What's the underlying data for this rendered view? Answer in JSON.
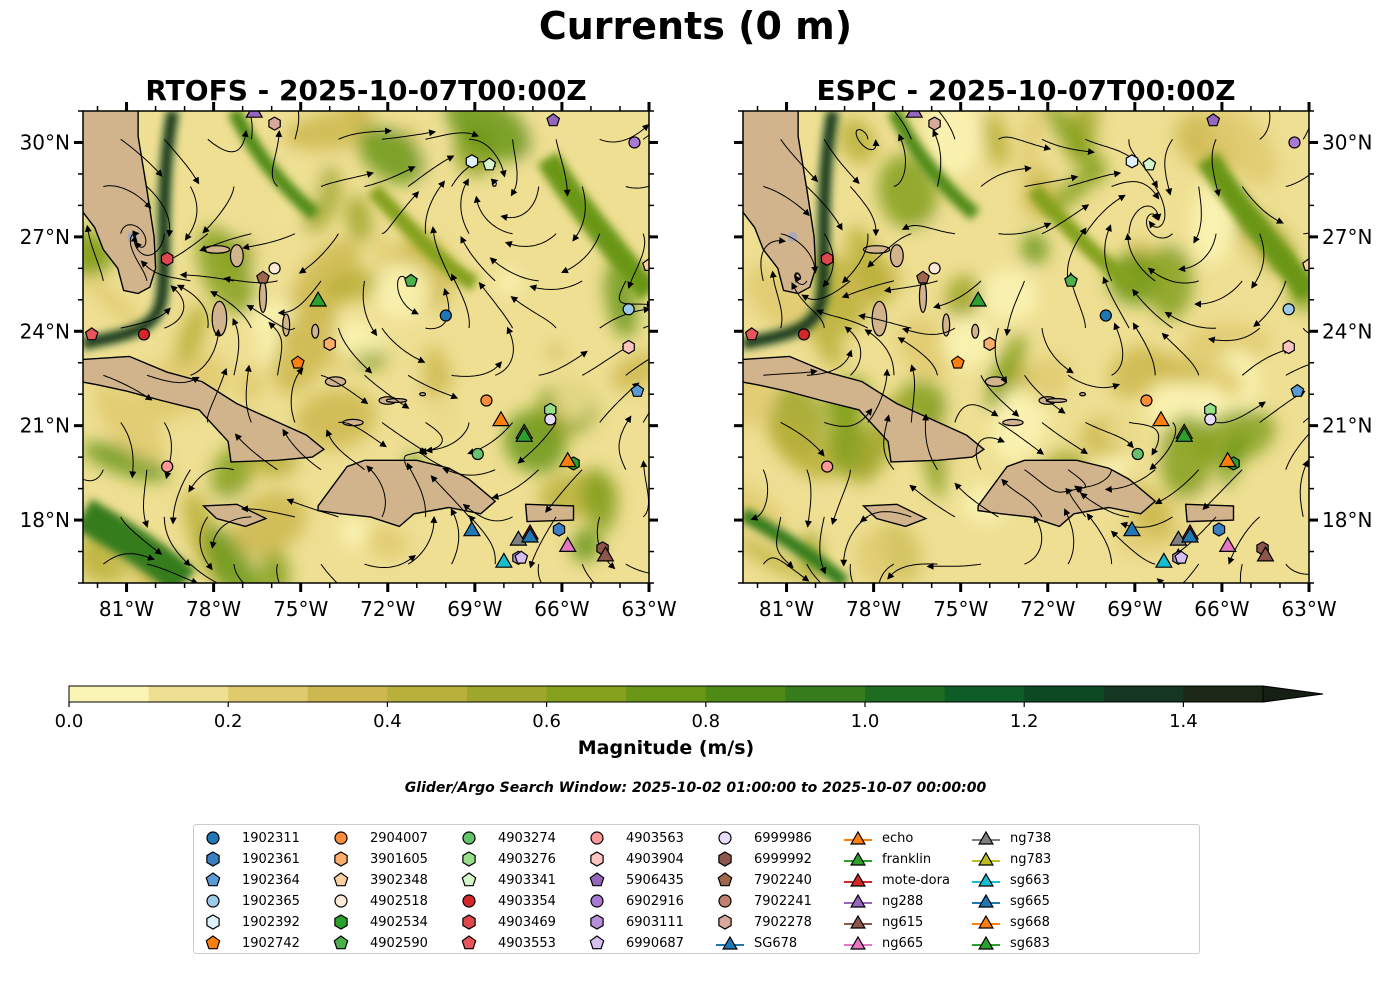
{
  "figure": {
    "title": "Currents (0 m)",
    "search_window": "Glider/Argo Search Window: 2025-10-02 01:00:00 to 2025-10-07 00:00:00"
  },
  "panels": [
    {
      "title": "RTOFS - 2025-10-07T00:00Z"
    },
    {
      "title": "ESPC - 2025-10-07T00:00Z"
    }
  ],
  "map_extent": {
    "lon": [
      -82.5,
      -63.0
    ],
    "lat": [
      16.0,
      31.0
    ]
  },
  "lon_ticks": [
    {
      "value": -81,
      "label": "81°W"
    },
    {
      "value": -78,
      "label": "78°W"
    },
    {
      "value": -75,
      "label": "75°W"
    },
    {
      "value": -72,
      "label": "72°W"
    },
    {
      "value": -69,
      "label": "69°W"
    },
    {
      "value": -66,
      "label": "66°W"
    },
    {
      "value": -63,
      "label": "63°W"
    }
  ],
  "lat_ticks": [
    {
      "value": 18,
      "label": "18°N"
    },
    {
      "value": 21,
      "label": "21°N"
    },
    {
      "value": 24,
      "label": "24°N"
    },
    {
      "value": 27,
      "label": "27°N"
    },
    {
      "value": 30,
      "label": "30°N"
    }
  ],
  "colorbar": {
    "label": "Magnitude (m/s)",
    "range": [
      0,
      1.5
    ],
    "extend": "max",
    "ticks": [
      {
        "value": 0.0,
        "label": "0.0"
      },
      {
        "value": 0.2,
        "label": "0.2"
      },
      {
        "value": 0.4,
        "label": "0.4"
      },
      {
        "value": 0.6,
        "label": "0.6"
      },
      {
        "value": 0.8,
        "label": "0.8"
      },
      {
        "value": 1.0,
        "label": "1.0"
      },
      {
        "value": 1.2,
        "label": "1.2"
      },
      {
        "value": 1.4,
        "label": "1.4"
      }
    ],
    "colors": [
      "#fbf5b5",
      "#eedf93",
      "#dfca6e",
      "#cdb84f",
      "#b8b03a",
      "#9fa62c",
      "#84a01c",
      "#6a9615",
      "#4f8a17",
      "#367c1c",
      "#1e6c21",
      "#0f5c26",
      "#0d4a24",
      "#153721",
      "#1b2817"
    ],
    "extend_color": "#151f14"
  },
  "land_color": "#d2b48c",
  "legend": [
    {
      "label": "1902311",
      "marker": "circle",
      "color": "#1f77b4"
    },
    {
      "label": "1902361",
      "marker": "hexagon",
      "color": "#3a7fc1"
    },
    {
      "label": "1902364",
      "marker": "pentagon",
      "color": "#5b9bd5"
    },
    {
      "label": "1902365",
      "marker": "circle",
      "color": "#9ecae9"
    },
    {
      "label": "1902392",
      "marker": "hexagon",
      "color": "#dff1fb"
    },
    {
      "label": "1902742",
      "marker": "pentagon",
      "color": "#ff7f0e"
    },
    {
      "label": "2904007",
      "marker": "circle",
      "color": "#fd8d3c"
    },
    {
      "label": "3901605",
      "marker": "hexagon",
      "color": "#fdae6b"
    },
    {
      "label": "3902348",
      "marker": "pentagon",
      "color": "#fdd0a2"
    },
    {
      "label": "4902518",
      "marker": "circle",
      "color": "#feebd7"
    },
    {
      "label": "4902534",
      "marker": "hexagon",
      "color": "#2ca02c"
    },
    {
      "label": "4902590",
      "marker": "pentagon",
      "color": "#4daf4a"
    },
    {
      "label": "4903274",
      "marker": "circle",
      "color": "#66c26b"
    },
    {
      "label": "4903276",
      "marker": "hexagon",
      "color": "#98df8a"
    },
    {
      "label": "4903341",
      "marker": "pentagon",
      "color": "#d4f5c9"
    },
    {
      "label": "4903354",
      "marker": "circle",
      "color": "#d62728"
    },
    {
      "label": "4903469",
      "marker": "hexagon",
      "color": "#e0474c"
    },
    {
      "label": "4903553",
      "marker": "pentagon",
      "color": "#e7555a"
    },
    {
      "label": "4903563",
      "marker": "circle",
      "color": "#ff9896"
    },
    {
      "label": "4903904",
      "marker": "hexagon",
      "color": "#fcc5c0"
    },
    {
      "label": "5906435",
      "marker": "pentagon",
      "color": "#9467bd"
    },
    {
      "label": "6902916",
      "marker": "circle",
      "color": "#a779d0"
    },
    {
      "label": "6903111",
      "marker": "hexagon",
      "color": "#b590d8"
    },
    {
      "label": "6990687",
      "marker": "pentagon",
      "color": "#d5bff0"
    },
    {
      "label": "6999986",
      "marker": "circle",
      "color": "#e9dcfb"
    },
    {
      "label": "6999992",
      "marker": "hexagon",
      "color": "#8c564b"
    },
    {
      "label": "7902240",
      "marker": "pentagon",
      "color": "#a0664d"
    },
    {
      "label": "7902241",
      "marker": "circle",
      "color": "#c08070"
    },
    {
      "label": "7902278",
      "marker": "hexagon",
      "color": "#d8a89a"
    },
    {
      "label": "SG678",
      "marker": "triangle",
      "color": "#1f77b4"
    },
    {
      "label": "echo",
      "marker": "triangle",
      "color": "#ff7f0e"
    },
    {
      "label": "franklin",
      "marker": "triangle",
      "color": "#2ca02c"
    },
    {
      "label": "mote-dora",
      "marker": "triangle",
      "color": "#d62728"
    },
    {
      "label": "ng288",
      "marker": "triangle",
      "color": "#9467bd"
    },
    {
      "label": "ng615",
      "marker": "triangle",
      "color": "#8c564b"
    },
    {
      "label": "ng665",
      "marker": "triangle",
      "color": "#e377c2"
    },
    {
      "label": "ng738",
      "marker": "triangle",
      "color": "#7f7f7f"
    },
    {
      "label": "ng783",
      "marker": "triangle",
      "color": "#bcbd22"
    },
    {
      "label": "sg663",
      "marker": "triangle",
      "color": "#17becf"
    },
    {
      "label": "sg665",
      "marker": "triangle",
      "color": "#1f77b4"
    },
    {
      "label": "sg668",
      "marker": "triangle",
      "color": "#ff7f0e"
    },
    {
      "label": "sg683",
      "marker": "triangle",
      "color": "#2ca02c"
    }
  ],
  "platforms": [
    {
      "label": "1902311",
      "lon": -70.0,
      "lat": 24.5
    },
    {
      "label": "1902361",
      "lon": -66.1,
      "lat": 17.7
    },
    {
      "label": "1902364",
      "lon": -63.4,
      "lat": 22.1
    },
    {
      "label": "1902365",
      "lon": -63.7,
      "lat": 24.7
    },
    {
      "label": "1902392",
      "lon": -69.1,
      "lat": 29.4
    },
    {
      "label": "1902742",
      "lon": -75.1,
      "lat": 23.0
    },
    {
      "label": "2904007",
      "lon": -68.6,
      "lat": 21.8
    },
    {
      "label": "3901605",
      "lon": -74.0,
      "lat": 23.6
    },
    {
      "label": "3902348",
      "lon": -63.0,
      "lat": 26.1
    },
    {
      "label": "4902518",
      "lon": -75.9,
      "lat": 26.0
    },
    {
      "label": "4902534",
      "lon": -65.6,
      "lat": 19.8
    },
    {
      "label": "4902590",
      "lon": -71.2,
      "lat": 25.6
    },
    {
      "label": "4903274",
      "lon": -68.9,
      "lat": 20.1
    },
    {
      "label": "4903276",
      "lon": -66.4,
      "lat": 21.5
    },
    {
      "label": "4903341",
      "lon": -68.5,
      "lat": 29.3
    },
    {
      "label": "4903354",
      "lon": -80.4,
      "lat": 23.9
    },
    {
      "label": "4903469",
      "lon": -79.6,
      "lat": 26.3
    },
    {
      "label": "4903553",
      "lon": -82.2,
      "lat": 23.9
    },
    {
      "label": "4903563",
      "lon": -79.6,
      "lat": 19.7
    },
    {
      "label": "4903904",
      "lon": -63.7,
      "lat": 23.5
    },
    {
      "label": "5906435",
      "lon": -66.3,
      "lat": 30.7
    },
    {
      "label": "6902916",
      "lon": -63.5,
      "lat": 30.0
    },
    {
      "label": "6903111",
      "lon": -67.5,
      "lat": 16.8
    },
    {
      "label": "6990687",
      "lon": -67.4,
      "lat": 16.8
    },
    {
      "label": "6999986",
      "lon": -66.4,
      "lat": 21.2
    },
    {
      "label": "6999992",
      "lon": -64.6,
      "lat": 17.1
    },
    {
      "label": "7902240",
      "lon": -76.3,
      "lat": 25.7
    },
    {
      "label": "7902241",
      "lon": -75.9,
      "lat": 30.6
    },
    {
      "label": "7902278",
      "lon": -75.9,
      "lat": 30.6
    },
    {
      "label": "SG678",
      "lon": -69.1,
      "lat": 17.7
    },
    {
      "label": "echo",
      "lon": -65.8,
      "lat": 19.9
    },
    {
      "label": "franklin",
      "lon": -74.4,
      "lat": 25.0
    },
    {
      "label": "mote-dora",
      "lon": -67.1,
      "lat": 17.6
    },
    {
      "label": "ng288",
      "lon": -76.6,
      "lat": 31.0
    },
    {
      "label": "ng615",
      "lon": -64.5,
      "lat": 16.9
    },
    {
      "label": "ng665",
      "lon": -65.8,
      "lat": 17.2
    },
    {
      "label": "ng738",
      "lon": -67.5,
      "lat": 17.4
    },
    {
      "label": "ng783",
      "lon": -67.3,
      "lat": 20.8
    },
    {
      "label": "sg663",
      "lon": -68.0,
      "lat": 16.7
    },
    {
      "label": "sg665",
      "lon": -67.1,
      "lat": 17.5
    },
    {
      "label": "sg668",
      "lon": -68.1,
      "lat": 21.2
    },
    {
      "label": "sg683",
      "lon": -67.3,
      "lat": 20.7
    }
  ]
}
